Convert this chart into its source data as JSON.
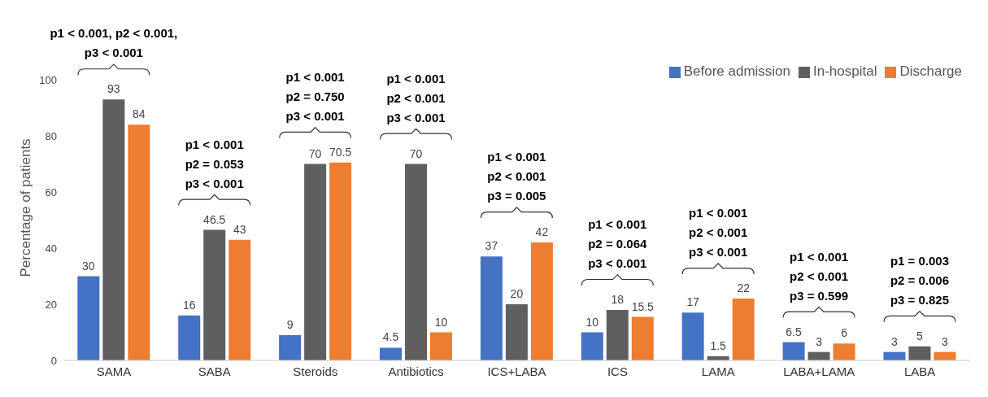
{
  "chart_data": {
    "type": "bar",
    "ylabel": "Percentage of patients",
    "categories": [
      "SAMA",
      "SABA",
      "Steroids",
      "Antibiotics",
      "ICS+LABA",
      "ICS",
      "LAMA",
      "LABA+LAMA",
      "LABA"
    ],
    "series": [
      {
        "name": "Before admission",
        "color": "#4472c4",
        "values": [
          30,
          16,
          9,
          4.5,
          37,
          10,
          17,
          6.5,
          3
        ]
      },
      {
        "name": "In-hospital",
        "color": "#5f5f5f",
        "values": [
          93,
          46.5,
          70,
          70,
          20,
          18,
          1.5,
          3,
          5
        ]
      },
      {
        "name": "Discharge",
        "color": "#ed7d31",
        "values": [
          84,
          43,
          70.5,
          10,
          42,
          15.5,
          22,
          6,
          3
        ]
      }
    ],
    "ylim": [
      0,
      100
    ],
    "yticks": [
      0,
      20,
      40,
      60,
      80,
      100
    ],
    "grid": false,
    "legend": "top right",
    "data_labels": true,
    "annotations": [
      "p1 < 0.001, p2 < 0.001,\np3 < 0.001",
      "p1 < 0.001\np2 = 0.053\np3 < 0.001",
      "p1 < 0.001\np2 = 0.750\np3 < 0.001",
      "p1 < 0.001\np2 < 0.001\np3 < 0.001",
      "p1 < 0.001\np2 < 0.001\np3 = 0.005",
      "p1 < 0.001\np2 = 0.064\np3 < 0.001",
      "p1 < 0.001\np2 < 0.001\np3 < 0.001",
      "p1 < 0.001\np2 < 0.001\np3 = 0.599",
      "p1 = 0.003\np2 = 0.006\np3 = 0.825"
    ]
  }
}
